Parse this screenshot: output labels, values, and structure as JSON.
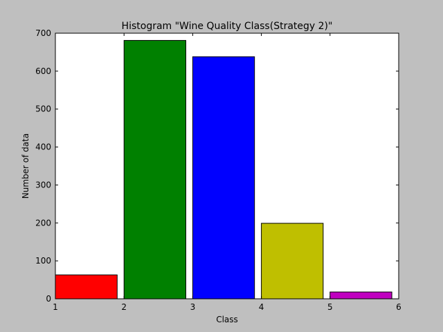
{
  "chart_data": {
    "type": "bar",
    "title": "Histogram \"Wine Quality Class(Strategy 2)\"",
    "xlabel": "Class",
    "ylabel": "Number of data",
    "xlim": [
      1,
      6
    ],
    "ylim": [
      0,
      700
    ],
    "x_ticks": [
      "1",
      "2",
      "3",
      "4",
      "5",
      "6"
    ],
    "y_ticks": [
      "0",
      "100",
      "200",
      "300",
      "400",
      "500",
      "600",
      "700"
    ],
    "grid": false,
    "bars": [
      {
        "x_start": 1,
        "x_end": 1.9,
        "value": 63,
        "color": "#ff0000"
      },
      {
        "x_start": 2,
        "x_end": 2.9,
        "value": 681,
        "color": "#008000"
      },
      {
        "x_start": 3,
        "x_end": 3.9,
        "value": 638,
        "color": "#0000ff"
      },
      {
        "x_start": 4,
        "x_end": 4.9,
        "value": 199,
        "color": "#bfbf00"
      },
      {
        "x_start": 5,
        "x_end": 5.9,
        "value": 18,
        "color": "#bf00bf"
      }
    ]
  }
}
